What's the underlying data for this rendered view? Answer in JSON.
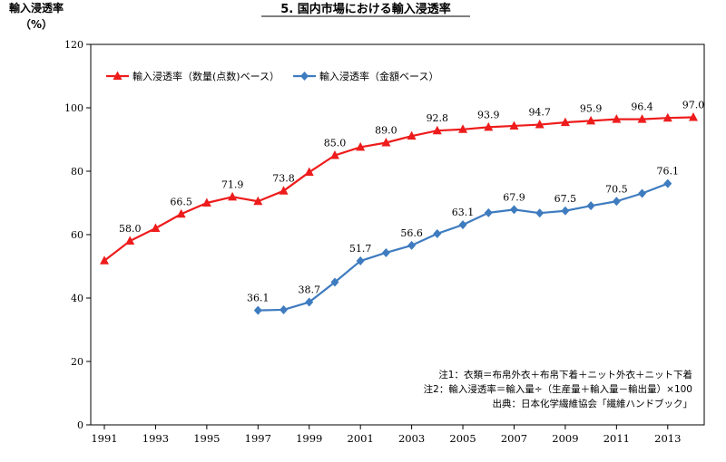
{
  "chart_data": {
    "type": "line",
    "title": "5. 国内市場における輸入浸透率",
    "ylabel": "輸入浸透率",
    "yunit": "（%）",
    "xlim": [
      1991,
      2014
    ],
    "ylim": [
      0,
      120
    ],
    "yticks": [
      0,
      20,
      40,
      60,
      80,
      100,
      120
    ],
    "xticks": [
      "1991",
      "1993",
      "1995",
      "1997",
      "1999",
      "2001",
      "2003",
      "2005",
      "2007",
      "2009",
      "2011",
      "2013"
    ],
    "grid": false,
    "legend_position": "top-left",
    "series": [
      {
        "name": "輸入浸透率（数量(点数)ベース）",
        "color": "#ee1c1c",
        "marker": "triangle",
        "x": [
          1991,
          1992,
          1993,
          1994,
          1995,
          1996,
          1997,
          1998,
          1999,
          2000,
          2001,
          2002,
          2003,
          2004,
          2005,
          2006,
          2007,
          2008,
          2009,
          2010,
          2011,
          2012,
          2013,
          2014
        ],
        "values": [
          51.8,
          58.0,
          62.0,
          66.5,
          70.0,
          71.9,
          70.5,
          73.8,
          79.7,
          85.0,
          87.6,
          89.0,
          91.1,
          92.8,
          93.2,
          93.9,
          94.3,
          94.7,
          95.4,
          95.9,
          96.4,
          96.4,
          96.8,
          97.0
        ],
        "labels": {
          "1992": "58.0",
          "1994": "66.5",
          "1996": "71.9",
          "1998": "73.8",
          "2000": "85.0",
          "2002": "89.0",
          "2004": "92.8",
          "2006": "93.9",
          "2008": "94.7",
          "2010": "95.9",
          "2012": "96.4",
          "2014": "97.0"
        }
      },
      {
        "name": "輸入浸透率（金額ベース）",
        "color": "#3e7bbf",
        "marker": "diamond",
        "x": [
          1997,
          1998,
          1999,
          2000,
          2001,
          2002,
          2003,
          2004,
          2005,
          2006,
          2007,
          2008,
          2009,
          2010,
          2011,
          2012,
          2013
        ],
        "values": [
          36.1,
          36.3,
          38.7,
          45.0,
          51.7,
          54.3,
          56.6,
          60.3,
          63.1,
          66.9,
          67.9,
          66.8,
          67.5,
          69.1,
          70.5,
          73.0,
          76.1
        ],
        "labels": {
          "1997": "36.1",
          "1999": "38.7",
          "2001": "51.7",
          "2003": "56.6",
          "2005": "63.1",
          "2007": "67.9",
          "2009": "67.5",
          "2011": "70.5",
          "2013": "76.1"
        }
      }
    ],
    "notes": [
      "注1：衣類＝布帛外衣＋布帛下着＋ニット外衣＋ニット下着",
      "注2：輸入浸透率＝輸入量÷（生産量＋輸入量－輸出量）×100",
      "出典：日本化学繊維協会「繊維ハンドブック」"
    ]
  }
}
